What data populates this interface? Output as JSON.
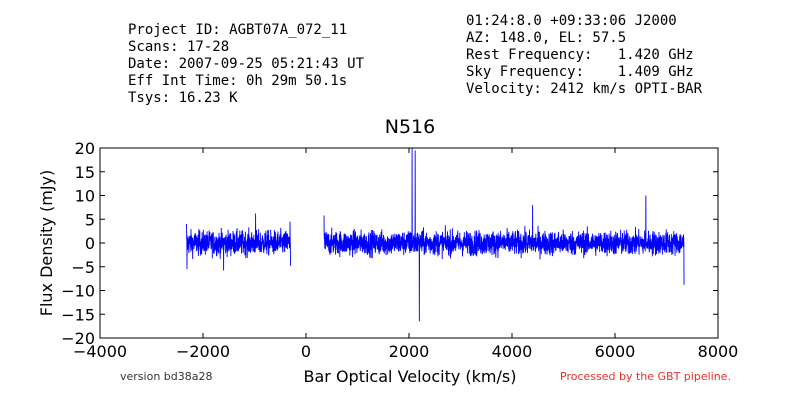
{
  "header": {
    "left": [
      "Project ID: AGBT07A_072_11",
      "Scans: 17-28",
      "Date: 2007-09-25 05:21:43 UT",
      "Eff Int Time: 0h 29m 50.1s",
      "Tsys: 16.23 K"
    ],
    "right": [
      "01:24:8.0 +09:33:06 J2000",
      "AZ: 148.0, EL: 57.5",
      "Rest Frequency:   1.420 GHz",
      "Sky Frequency:    1.409 GHz",
      "Velocity: 2412 km/s OPTI-BAR"
    ]
  },
  "footer": {
    "version": "version bd38a28",
    "processed": "Processed by the GBT pipeline."
  },
  "chart_data": {
    "type": "line",
    "title": "N516",
    "xlabel": "Bar Optical Velocity (km/s)",
    "ylabel": "Flux Density (mJy)",
    "xlim": [
      -4000,
      8000
    ],
    "ylim": [
      -20,
      20
    ],
    "xticks": [
      -4000,
      -2000,
      0,
      2000,
      4000,
      6000,
      8000
    ],
    "yticks": [
      -20,
      -15,
      -10,
      -5,
      0,
      5,
      10,
      15,
      20
    ],
    "grid": false,
    "line_color": "#0000ff",
    "series": [
      {
        "segments": [
          {
            "x_range": [
              -2320,
              -300
            ],
            "noise_rms": 1.3,
            "spikes": [
              {
                "x": -2320,
                "y": 4.0
              },
              {
                "x": -2310,
                "y": -5.5
              },
              {
                "x": -1600,
                "y": -5.8
              },
              {
                "x": -980,
                "y": 6.2
              },
              {
                "x": -310,
                "y": 4.5
              },
              {
                "x": -300,
                "y": -4.8
              }
            ]
          },
          {
            "x_range": [
              350,
              7340
            ],
            "noise_rms": 1.3,
            "spikes": [
              {
                "x": 350,
                "y": 5.8
              },
              {
                "x": 2060,
                "y": 20.0
              },
              {
                "x": 2120,
                "y": 19.5
              },
              {
                "x": 2200,
                "y": -16.5
              },
              {
                "x": 4400,
                "y": 8.0
              },
              {
                "x": 6600,
                "y": 10.0
              },
              {
                "x": 7340,
                "y": -8.8
              }
            ]
          }
        ]
      }
    ]
  }
}
